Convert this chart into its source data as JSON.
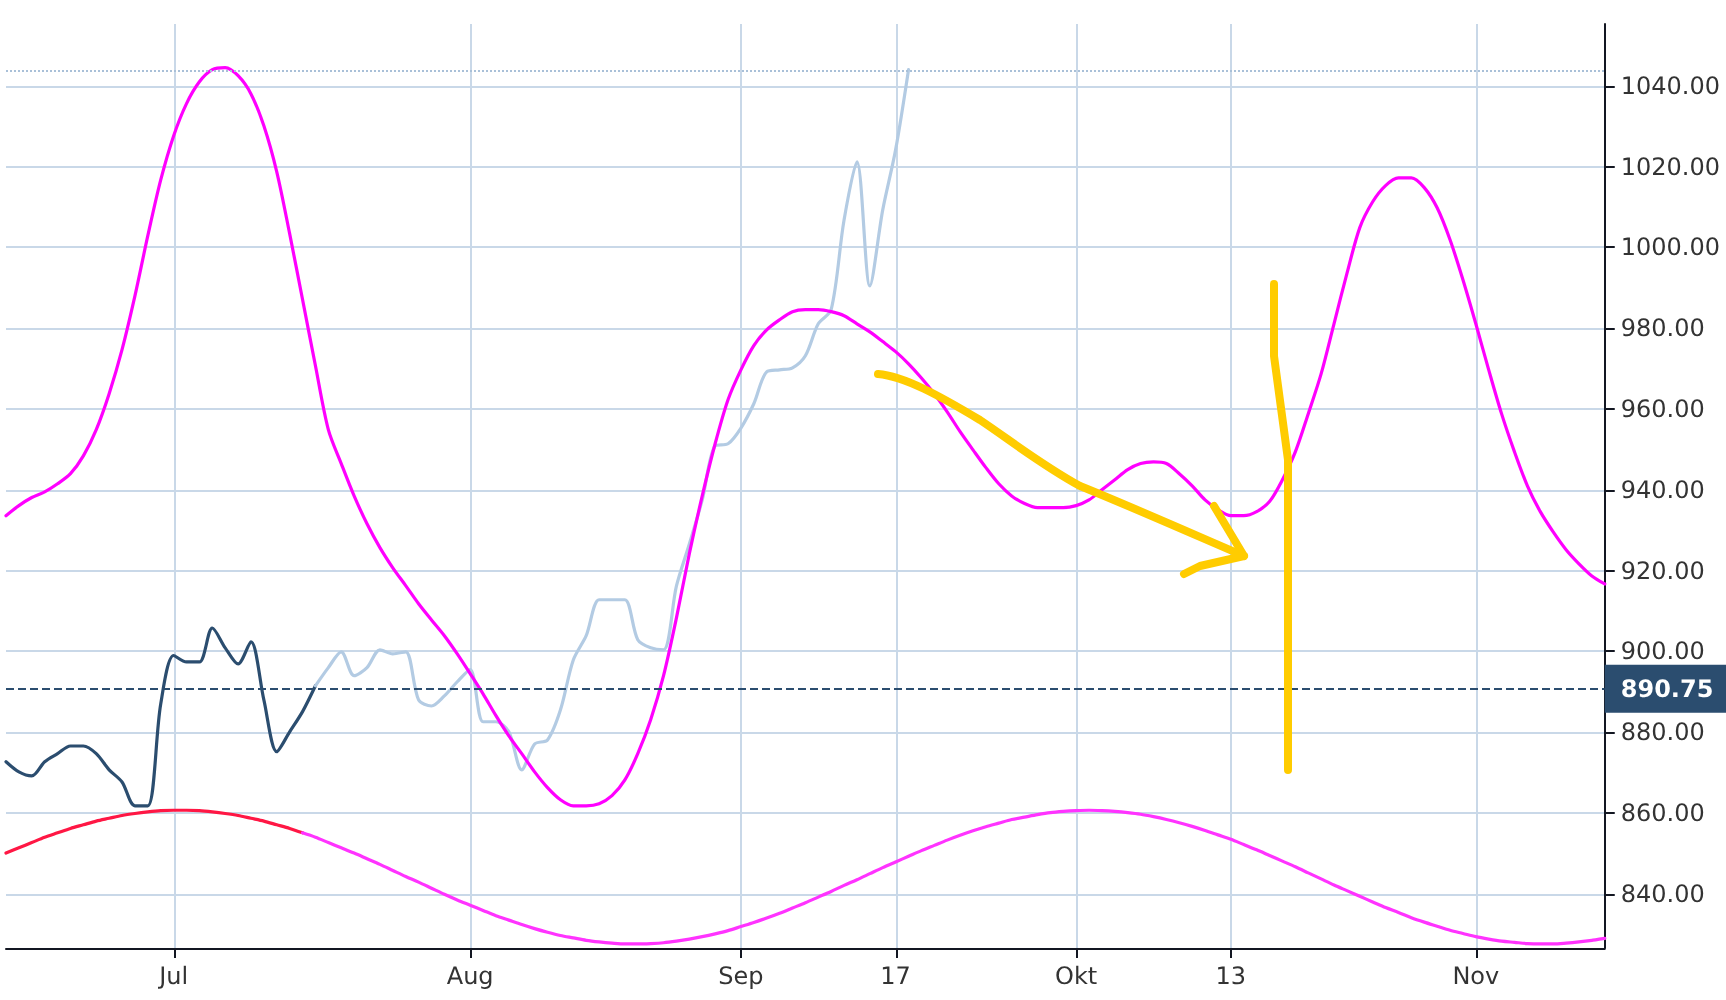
{
  "chart_data": {
    "type": "line",
    "categories": [
      null,
      null,
      null,
      null,
      null,
      null,
      null,
      null,
      null,
      null,
      null,
      null,
      null,
      "Jul",
      null,
      null,
      null,
      null,
      null,
      null,
      null,
      null,
      null,
      null,
      null,
      null,
      null,
      null,
      null,
      null,
      null,
      null,
      null,
      null,
      null,
      null,
      "Aug",
      null,
      null,
      null,
      null,
      null,
      null,
      null,
      null,
      null,
      null,
      null,
      null,
      null,
      null,
      null,
      null,
      null,
      null,
      null,
      null,
      "Sep",
      null,
      null,
      null,
      null,
      null,
      null,
      null,
      null,
      null,
      null,
      null,
      "17",
      null,
      null,
      null,
      null,
      null,
      null,
      null,
      null,
      null,
      null,
      null,
      null,
      null,
      "Okt",
      null,
      null,
      null,
      null,
      null,
      null,
      null,
      null,
      null,
      null,
      null,
      "13",
      null,
      null,
      null,
      null,
      null,
      null,
      null,
      null,
      null,
      null,
      null,
      null,
      null,
      null,
      null,
      null,
      null,
      null,
      "Nov",
      null,
      null,
      null,
      null,
      null,
      null,
      null,
      null,
      null,
      null
    ],
    "series": [
      {
        "color": "#2b4d6f",
        "values": [
          872.7,
          870.2,
          869.2,
          872.7,
          874.7,
          876.6,
          876.6,
          874.7,
          870.7,
          867.7,
          861.8,
          861.8,
          887,
          899,
          897.4,
          897.4,
          905.8,
          900.9,
          896.9,
          902.4,
          888,
          875.2,
          880.1,
          885.1,
          891.5,
          null,
          null,
          null,
          null,
          null,
          null,
          null,
          null,
          null,
          null,
          null,
          null,
          null,
          null,
          null,
          null,
          null,
          null,
          null,
          null,
          null,
          null,
          null,
          null,
          null,
          null,
          null,
          null,
          null,
          null,
          null,
          null,
          null,
          null,
          null,
          null,
          null,
          null,
          null,
          null,
          null,
          null,
          null,
          null,
          null,
          null,
          null,
          null,
          null,
          null,
          null,
          null,
          null,
          null,
          null,
          null,
          null,
          null,
          null,
          null,
          null,
          null,
          null,
          null,
          null,
          null,
          null,
          null,
          null,
          null,
          null,
          null,
          null,
          null,
          null,
          null,
          null,
          null,
          null,
          null,
          null,
          null,
          null,
          null,
          null,
          null,
          null,
          null,
          null,
          null,
          null,
          null,
          null,
          null,
          null,
          null,
          null,
          null,
          null,
          null
        ]
      },
      {
        "color": "#b3cbe3",
        "values": [
          null,
          null,
          null,
          null,
          null,
          null,
          null,
          null,
          null,
          null,
          null,
          null,
          null,
          null,
          null,
          null,
          null,
          null,
          null,
          null,
          null,
          null,
          null,
          null,
          891.5,
          896,
          899.9,
          894,
          896,
          900.4,
          899.4,
          899.9,
          888,
          886.5,
          889,
          892.5,
          895.5,
          882.6,
          882.6,
          880.1,
          870.7,
          877.1,
          878.1,
          885.5,
          897.9,
          903.9,
          912.8,
          912.8,
          912.8,
          902.9,
          900.9,
          900.4,
          916.2,
          926.6,
          937.5,
          950.9,
          951.4,
          955.3,
          961.3,
          969.2,
          969.7,
          970.2,
          973.2,
          981.1,
          984.6,
          1006.8,
          1021.2,
          990.5,
          1009.3,
          1024.2,
          1044,
          null,
          null,
          null,
          null,
          null,
          null,
          null,
          null,
          null,
          null,
          null,
          null,
          null,
          null,
          null,
          null,
          null,
          null,
          null,
          null,
          null,
          null,
          null,
          null,
          null,
          null,
          null,
          null,
          null,
          null,
          null,
          null,
          null,
          null,
          null,
          null,
          null,
          null,
          null,
          null,
          null,
          null,
          null,
          null,
          null,
          null,
          null,
          null,
          null,
          null,
          null,
          null,
          null,
          null
        ]
      },
      {
        "color": "#ff00ff",
        "values": [
          933.6,
          936.1,
          938.1,
          939.5,
          941.5,
          944,
          948.4,
          954.9,
          963.8,
          974.7,
          988,
          1002.9,
          1016.7,
          1027.6,
          1035.6,
          1041,
          1044,
          1044.5,
          1042.5,
          1038,
          1030.1,
          1018.7,
          1003.4,
          987.1,
          970.7,
          954.9,
          946.5,
          938.5,
          931.6,
          925.7,
          920.7,
          916.3,
          911.8,
          907.8,
          903.9,
          899.4,
          894.5,
          889.5,
          884.1,
          879.1,
          874.7,
          870.2,
          866.3,
          863.3,
          861.8,
          861.8,
          862.3,
          864.3,
          868.2,
          874.7,
          883.1,
          894,
          908.3,
          924.2,
          938.5,
          951.4,
          962.3,
          969.7,
          975.7,
          979.6,
          982.1,
          984.1,
          984.6,
          984.6,
          984.1,
          983.1,
          981.1,
          979.1,
          976.7,
          974.2,
          971.2,
          967.7,
          963.8,
          959.3,
          954.4,
          949.9,
          945.5,
          941.5,
          938.5,
          936.6,
          935.6,
          935.6,
          935.6,
          936.1,
          937.5,
          940,
          942.5,
          945,
          946.5,
          946.9,
          946.5,
          944,
          941,
          937.5,
          935.1,
          933.6,
          933.6,
          934.6,
          937.1,
          942.5,
          949.4,
          958.8,
          968.7,
          981.1,
          993.5,
          1004.9,
          1011.3,
          1015.3,
          1017.2,
          1017.2,
          1014.8,
          1009.8,
          1001.9,
          992,
          981.1,
          969.7,
          958.8,
          949.4,
          941,
          934.6,
          929.6,
          925.2,
          921.7,
          918.7,
          916.7
        ]
      },
      {
        "color": "#ff1744",
        "values": [
          850.1,
          851.4,
          852.7,
          854.0,
          855.1,
          856.2,
          857.1,
          858.0,
          858.7,
          859.4,
          859.9,
          860.3,
          860.6,
          860.7,
          860.7,
          860.6,
          860.3,
          859.9,
          859.4,
          858.7,
          858.0,
          857.1,
          856.2,
          855.1,
          null,
          null,
          null,
          null,
          null,
          null,
          null,
          null,
          null,
          null,
          null,
          null,
          null,
          null,
          null,
          null,
          null,
          null,
          null,
          null,
          null,
          null,
          null,
          null,
          null,
          null,
          null,
          null,
          null,
          null,
          null,
          null,
          null,
          null,
          null,
          null,
          null,
          null,
          null,
          null,
          null,
          null,
          null,
          null,
          null,
          null,
          null,
          null,
          null,
          null,
          null,
          null,
          null,
          null,
          null,
          null,
          null,
          null,
          null,
          null,
          null,
          null,
          null,
          null,
          null,
          null,
          null,
          null,
          null,
          null,
          null,
          null,
          null,
          null,
          null,
          null,
          null,
          null,
          null,
          null,
          null,
          null,
          null,
          null,
          null,
          null,
          null,
          null,
          null,
          null,
          null,
          null,
          null,
          null,
          null,
          null,
          null,
          null,
          null,
          null,
          null
        ]
      },
      {
        "color": "#ff33ff",
        "values": [
          null,
          null,
          null,
          null,
          null,
          null,
          null,
          null,
          null,
          null,
          null,
          null,
          null,
          null,
          null,
          null,
          null,
          null,
          null,
          null,
          null,
          null,
          null,
          855.1,
          854.0,
          852.7,
          851.4,
          850.1,
          848.7,
          847.3,
          845.8,
          844.3,
          842.9,
          841.4,
          839.9,
          838.5,
          837.2,
          835.9,
          834.6,
          833.5,
          832.4,
          831.4,
          830.5,
          829.7,
          829.1,
          828.5,
          828.1,
          827.8,
          827.6,
          827.6,
          827.7,
          827.9,
          828.3,
          828.8,
          829.4,
          830.1,
          830.9,
          831.9,
          832.9,
          834.0,
          835.2,
          836.5,
          837.8,
          839.2,
          840.6,
          842.1,
          843.5,
          845.0,
          846.5,
          847.9,
          849.3,
          850.7,
          852.0,
          853.3,
          854.5,
          855.6,
          856.6,
          857.5,
          858.4,
          859.0,
          859.6,
          860.1,
          860.4,
          860.6,
          860.7,
          860.6,
          860.4,
          860.1,
          859.7,
          859.1,
          858.4,
          857.6,
          856.7,
          855.7,
          854.6,
          853.5,
          852.2,
          850.9,
          849.5,
          848.1,
          846.7,
          845.2,
          843.7,
          842.2,
          840.8,
          839.4,
          838.0,
          836.6,
          835.4,
          834.1,
          833.0,
          832.0,
          831.0,
          830.2,
          829.4,
          828.8,
          828.3,
          828.0,
          827.7,
          827.6,
          827.6,
          827.8,
          828.1,
          828.5,
          829.0
        ]
      }
    ],
    "ylim": [
      826.6,
      1055.3
    ],
    "yticks": [
      {
        "value": 840,
        "label": "840.00"
      },
      {
        "value": 860,
        "label": "860.00"
      },
      {
        "value": 880,
        "label": "880.00"
      },
      {
        "value": 900,
        "label": "900.00"
      },
      {
        "value": 920,
        "label": "920.00"
      },
      {
        "value": 940,
        "label": "940.00"
      },
      {
        "value": 960,
        "label": "960.00"
      },
      {
        "value": 980,
        "label": "980.00"
      },
      {
        "value": 1000,
        "label": "1000.00"
      },
      {
        "value": 1020,
        "label": "1020.00"
      },
      {
        "value": 1040,
        "label": "1040.00"
      }
    ],
    "ref_lines": [
      {
        "axis": "y",
        "value": 890.75,
        "label": "890.75",
        "color": "#2b4d6f",
        "line_style": "dashed"
      },
      {
        "axis": "y",
        "value": 1044,
        "label": null,
        "color": "#a9c0d8",
        "line_style": "dotted"
      }
    ],
    "grid": true,
    "marker": "none",
    "line_style": "solid"
  }
}
